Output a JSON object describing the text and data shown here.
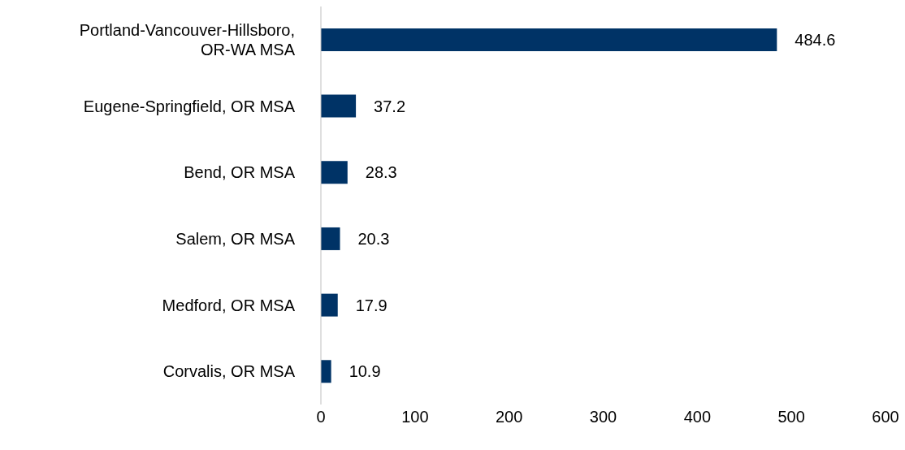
{
  "chart_data": {
    "type": "bar",
    "orientation": "horizontal",
    "categories": [
      "Portland-Vancouver-Hillsboro, OR-WA MSA",
      "Eugene-Springfield, OR MSA",
      "Bend, OR MSA",
      "Salem, OR MSA",
      "Medford, OR MSA",
      "Corvalis, OR MSA"
    ],
    "values": [
      484.6,
      37.2,
      28.3,
      20.3,
      17.9,
      10.9
    ],
    "color": "#003366",
    "data_labels": true,
    "xlim": [
      0,
      600
    ],
    "xticks": [
      0,
      100,
      200,
      300,
      400,
      500,
      600
    ],
    "grid": false,
    "legend": false
  }
}
